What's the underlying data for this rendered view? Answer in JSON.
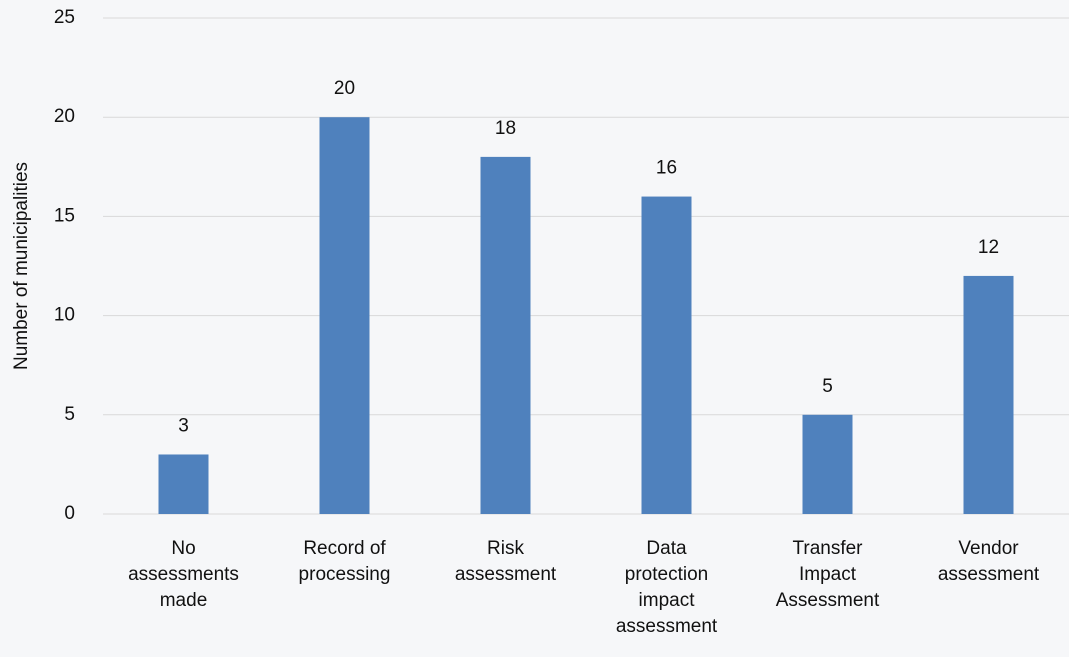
{
  "chart_data": {
    "type": "bar",
    "y_label": "Number of municipalities",
    "categories": [
      "No assessments made",
      "Record of processing",
      "Risk assessment",
      "Data protection impact assessment",
      "Transfer Impact Assessment",
      "Vendor assessment"
    ],
    "values": [
      3,
      20,
      18,
      16,
      5,
      12
    ],
    "color": "#4f81bd",
    "ylim": [
      0,
      25
    ],
    "yticks": [
      0,
      5,
      10,
      15,
      20,
      25
    ],
    "grid": true
  }
}
